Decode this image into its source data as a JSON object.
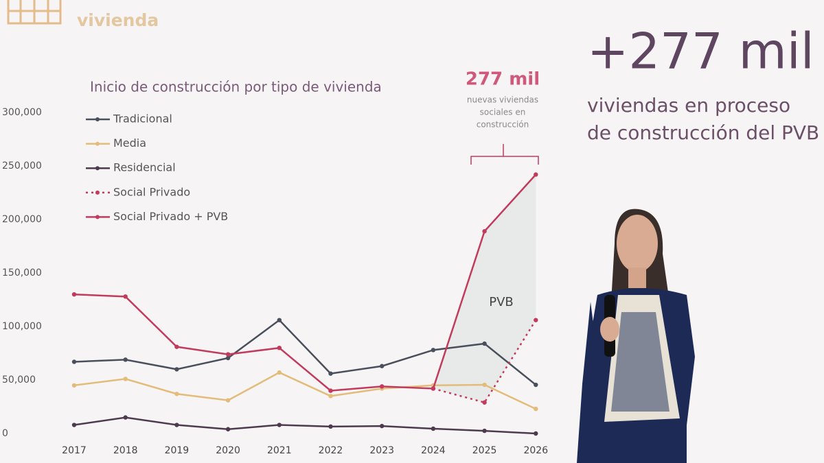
{
  "header": {
    "title": "vivienda"
  },
  "chart_data": {
    "type": "line",
    "title": "Inicio de construcción por tipo de vivienda",
    "categories": [
      "2017",
      "2018",
      "2019",
      "2020",
      "2021",
      "2022",
      "2023",
      "2024",
      "2025",
      "2026"
    ],
    "series": [
      {
        "name": "Tradicional",
        "color": "#4a4f5c",
        "style": "solid",
        "values": [
          67000,
          69000,
          60000,
          70500,
          106000,
          56000,
          63000,
          78000,
          84000,
          45500
        ]
      },
      {
        "name": "Media",
        "color": "#e2bc78",
        "style": "solid",
        "values": [
          45000,
          51000,
          37000,
          31000,
          57000,
          35000,
          42000,
          45000,
          45500,
          23000
        ]
      },
      {
        "name": "Residencial",
        "color": "#4e3a4e",
        "style": "solid",
        "values": [
          8000,
          15000,
          8000,
          4000,
          8000,
          6500,
          7000,
          4500,
          2500,
          0
        ]
      },
      {
        "name": "Social Privado",
        "color": "#c23a5c",
        "style": "dotted",
        "values": [
          null,
          null,
          null,
          null,
          null,
          null,
          null,
          42000,
          29000,
          106000
        ]
      },
      {
        "name": "Social Privado + PVB",
        "color": "#c23a5c",
        "style": "solid",
        "values": [
          130000,
          128000,
          81000,
          74000,
          80000,
          40000,
          44000,
          42000,
          189000,
          242000
        ]
      }
    ],
    "ylim": [
      0,
      300000
    ],
    "yticks": [
      0,
      {
        "value": 50000,
        "label": "50,000"
      },
      {
        "value": 100000,
        "label": "100,000"
      },
      {
        "value": 150000,
        "label": "150,000"
      },
      {
        "value": 200000,
        "label": "200,000"
      },
      {
        "value": 250000,
        "label": "250,000"
      },
      {
        "value": 300000,
        "label": "300,000"
      }
    ],
    "area_label": "PVB",
    "annotation": {
      "title": "277 mil",
      "text": [
        "nuevas viviendas",
        "sociales en",
        "construcción"
      ]
    }
  },
  "side": {
    "headline": "+277 mil",
    "lines": [
      "viviendas en proceso",
      "de construcción del PVB"
    ]
  }
}
